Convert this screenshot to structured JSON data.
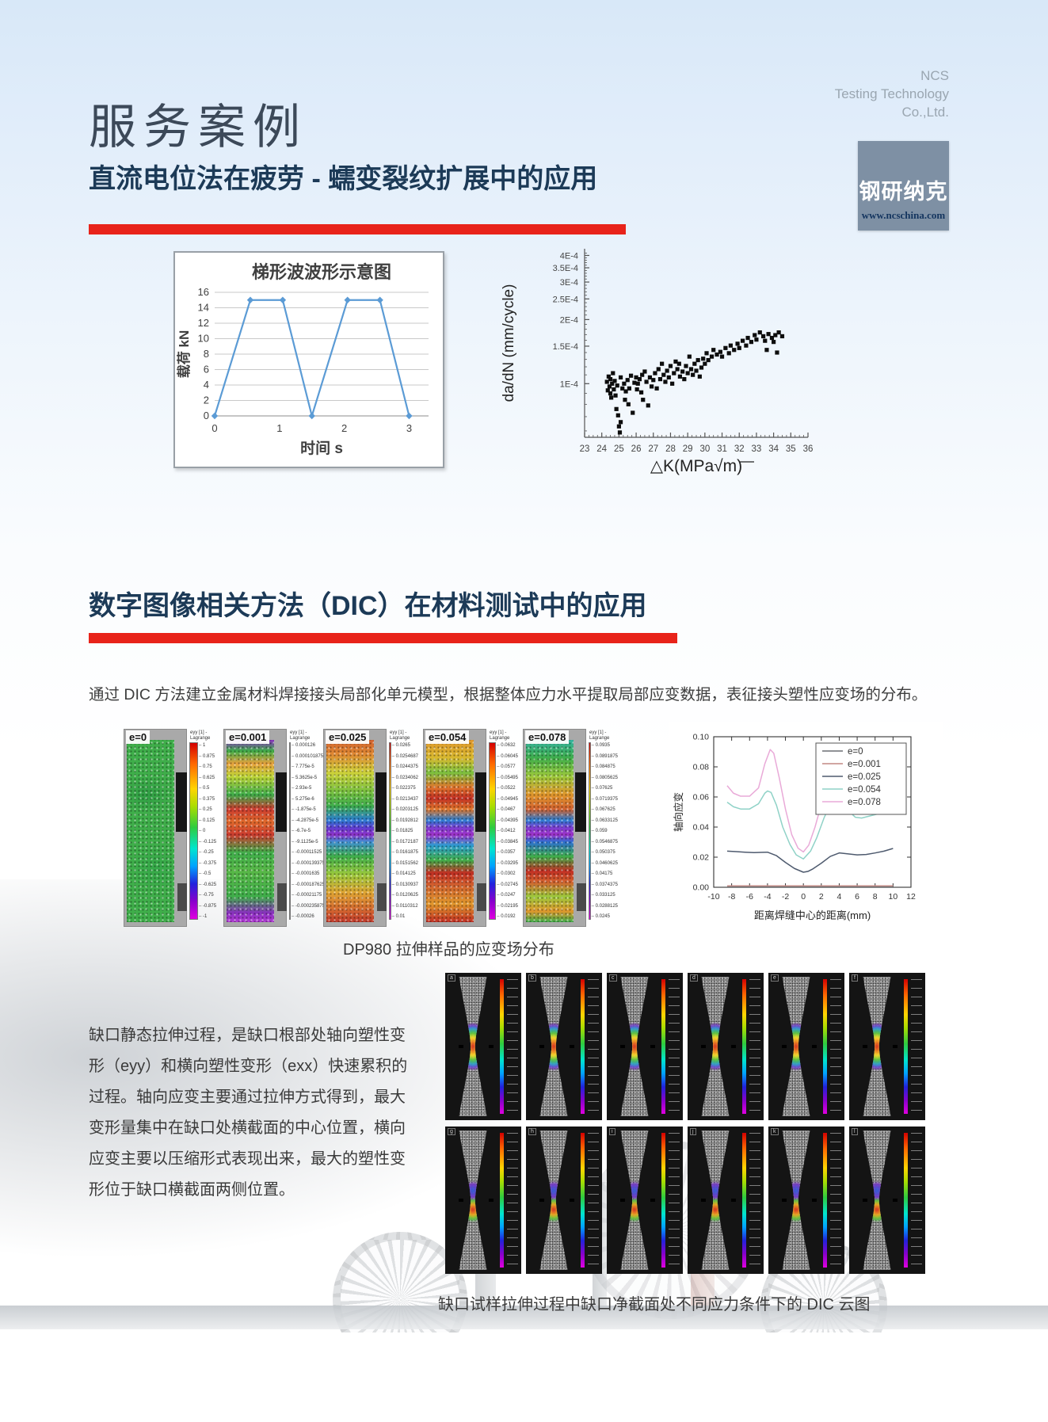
{
  "page": {
    "title": "服务案例",
    "subtitle": "直流电位法在疲劳 - 蠕变裂纹扩展中的应用",
    "section2_title": "数字图像相关方法（DIC）在材料测试中的应用",
    "paragraph1": "通过 DIC 方法建立金属材料焊接接头局部化单元模型，根据整体应力水平提取局部应变数据，表征接头塑性应变场的分布。",
    "paragraph2": "缺口静态拉伸过程，是缺口根部处轴向塑性变形（eyy）和横向塑性变形（exx）快速累积的过程。轴向应变主要通过拉伸方式得到，最大变形量集中在缺口处横截面的中心位置，横向应变主要以压缩形式表现出来，最大的塑性变形位于缺口横截面两侧位置。",
    "caption1": "DP980 拉伸样品的应变场分布",
    "caption2": "缺口试样拉伸过程中缺口净截面处不同应力条件下的 DIC 云图"
  },
  "brand": {
    "name_lines": [
      "NCS",
      "Testing Technology",
      "Co.,Ltd."
    ],
    "logo_text": "钢研纳克",
    "logo_site": "www.ncschina.com",
    "logo_bg": "#7e90a4",
    "accent_red": "#e8231a"
  },
  "chart_data": [
    {
      "type": "line",
      "title": "梯形波波形示意图",
      "xlabel": "时间 s",
      "ylabel": "载荷 kN",
      "x": [
        0,
        0.55,
        1.05,
        1.5,
        2.05,
        2.55,
        3
      ],
      "values": [
        0,
        15,
        15,
        0,
        15,
        15,
        0
      ],
      "xticks": [
        0,
        1,
        2,
        3
      ],
      "yticks": [
        0,
        2,
        4,
        6,
        8,
        10,
        12,
        14,
        16
      ],
      "xlim": [
        0,
        3.3
      ],
      "ylim": [
        0,
        16
      ],
      "grid": true,
      "marker": "diamond",
      "line_color": "#5b9bd5"
    },
    {
      "type": "scatter",
      "xlabel": "△K(MPa√m)",
      "ylabel": "da/dN (mm/cycle)",
      "yscale": "log",
      "xlim": [
        23,
        36
      ],
      "ylim": [
        5.6e-05,
        0.00043
      ],
      "xticks": [
        23,
        24,
        25,
        26,
        27,
        28,
        29,
        30,
        31,
        32,
        33,
        34,
        35,
        36
      ],
      "ytick_labels": [
        "4E-4",
        "3.5E-4",
        "3E-4",
        "2.5E-4",
        "2E-4",
        "1.5E-4",
        "1E-4"
      ],
      "ytick_values": [
        0.0004,
        0.00035,
        0.0003,
        0.00025,
        0.0002,
        0.00015,
        0.0001
      ],
      "marker_color": "#0d0d0d",
      "y_unit": "1e-4 mm/cycle",
      "points": [
        [
          24.3,
          1.02
        ],
        [
          24.35,
          0.93
        ],
        [
          24.4,
          1.08
        ],
        [
          24.45,
          0.97
        ],
        [
          24.5,
          0.9
        ],
        [
          24.5,
          1.05
        ],
        [
          24.55,
          0.86
        ],
        [
          24.6,
          1.0
        ],
        [
          24.65,
          1.12
        ],
        [
          24.7,
          0.94
        ],
        [
          24.75,
          1.03
        ],
        [
          24.8,
          0.88
        ],
        [
          24.85,
          0.76
        ],
        [
          24.9,
          0.98
        ],
        [
          24.95,
          0.71
        ],
        [
          25.0,
          0.63
        ],
        [
          25.05,
          0.59
        ],
        [
          25.1,
          0.66
        ],
        [
          25.1,
          1.07
        ],
        [
          25.2,
          0.95
        ],
        [
          25.3,
          1.0
        ],
        [
          25.35,
          0.84
        ],
        [
          25.4,
          0.92
        ],
        [
          25.5,
          1.04
        ],
        [
          25.55,
          0.8
        ],
        [
          25.6,
          0.95
        ],
        [
          25.7,
          1.09
        ],
        [
          25.8,
          0.73
        ],
        [
          25.9,
          1.01
        ],
        [
          26.0,
          1.07
        ],
        [
          26.05,
          0.94
        ],
        [
          26.1,
          1.0
        ],
        [
          26.2,
          1.05
        ],
        [
          26.3,
          0.91
        ],
        [
          26.35,
          1.1
        ],
        [
          26.4,
          0.84
        ],
        [
          26.5,
          1.14
        ],
        [
          26.6,
          1.02
        ],
        [
          26.7,
          0.79
        ],
        [
          26.8,
          1.07
        ],
        [
          26.9,
          0.97
        ],
        [
          27.0,
          1.04
        ],
        [
          27.1,
          1.12
        ],
        [
          27.2,
          0.95
        ],
        [
          27.3,
          1.17
        ],
        [
          27.4,
          1.05
        ],
        [
          27.5,
          1.24
        ],
        [
          27.6,
          1.1
        ],
        [
          27.7,
          1.02
        ],
        [
          27.8,
          1.15
        ],
        [
          27.9,
          1.07
        ],
        [
          28.0,
          1.21
        ],
        [
          28.1,
          1.0
        ],
        [
          28.2,
          1.12
        ],
        [
          28.3,
          1.27
        ],
        [
          28.4,
          1.17
        ],
        [
          28.5,
          1.24
        ],
        [
          28.55,
          1.08
        ],
        [
          28.7,
          1.14
        ],
        [
          28.8,
          1.05
        ],
        [
          28.9,
          1.21
        ],
        [
          29.0,
          1.12
        ],
        [
          29.1,
          1.34
        ],
        [
          29.2,
          1.17
        ],
        [
          29.3,
          1.1
        ],
        [
          29.4,
          1.24
        ],
        [
          29.5,
          1.15
        ],
        [
          29.6,
          1.29
        ],
        [
          29.7,
          1.08
        ],
        [
          29.8,
          1.19
        ],
        [
          29.9,
          1.31
        ],
        [
          30.0,
          1.24
        ],
        [
          30.1,
          1.39
        ],
        [
          30.2,
          1.29
        ],
        [
          30.4,
          1.34
        ],
        [
          30.5,
          1.44
        ],
        [
          30.7,
          1.37
        ],
        [
          30.9,
          1.41
        ],
        [
          31.0,
          1.34
        ],
        [
          31.2,
          1.47
        ],
        [
          31.4,
          1.39
        ],
        [
          31.5,
          1.51
        ],
        [
          31.7,
          1.44
        ],
        [
          31.9,
          1.54
        ],
        [
          32.0,
          1.47
        ],
        [
          32.2,
          1.59
        ],
        [
          32.4,
          1.51
        ],
        [
          32.5,
          1.64
        ],
        [
          32.7,
          1.57
        ],
        [
          32.9,
          1.69
        ],
        [
          33.0,
          1.61
        ],
        [
          33.2,
          1.74
        ],
        [
          33.4,
          1.67
        ],
        [
          33.5,
          1.59
        ],
        [
          33.7,
          1.71
        ],
        [
          33.9,
          1.64
        ],
        [
          34.0,
          1.57
        ],
        [
          34.1,
          1.69
        ],
        [
          34.3,
          1.74
        ],
        [
          34.5,
          1.67
        ],
        [
          33.6,
          1.44
        ],
        [
          34.2,
          1.4
        ]
      ]
    },
    {
      "type": "line",
      "xlabel": "距离焊缝中心的距离(mm)",
      "ylabel": "轴向应变",
      "xlim": [
        -10,
        12
      ],
      "ylim": [
        0,
        0.1
      ],
      "xticks": [
        -10,
        -8,
        -6,
        -4,
        -2,
        0,
        2,
        4,
        6,
        8,
        10,
        12
      ],
      "yticks": [
        0.0,
        0.02,
        0.04,
        0.06,
        0.08,
        0.1
      ],
      "legend_position": "top-right",
      "series": [
        {
          "name": "e=0",
          "color": "#6b6f73",
          "points": [
            [
              -8.5,
              0.0004
            ],
            [
              10,
              0.0004
            ]
          ]
        },
        {
          "name": "e=0.001",
          "color": "#c28984",
          "points": [
            [
              -8.5,
              0.0009
            ],
            [
              10,
              0.0009
            ]
          ]
        },
        {
          "name": "e=0.025",
          "color": "#4e5a6e",
          "points": [
            [
              -8.5,
              0.024
            ],
            [
              -7.5,
              0.0237
            ],
            [
              -6.5,
              0.0233
            ],
            [
              -5.5,
              0.023
            ],
            [
              -4.5,
              0.0232
            ],
            [
              -4,
              0.0233
            ],
            [
              -3,
              0.021
            ],
            [
              -2,
              0.0165
            ],
            [
              -1,
              0.0125
            ],
            [
              0,
              0.01
            ],
            [
              0.5,
              0.0105
            ],
            [
              1,
              0.012
            ],
            [
              2,
              0.016
            ],
            [
              3,
              0.0205
            ],
            [
              4,
              0.0228
            ],
            [
              5,
              0.0222
            ],
            [
              6,
              0.0215
            ],
            [
              7,
              0.0218
            ],
            [
              8,
              0.0228
            ],
            [
              9,
              0.024
            ],
            [
              10,
              0.0258
            ]
          ]
        },
        {
          "name": "e=0.054",
          "color": "#8fd2c7",
          "points": [
            [
              -8.5,
              0.0565
            ],
            [
              -7.8,
              0.0535
            ],
            [
              -7,
              0.052
            ],
            [
              -6,
              0.052
            ],
            [
              -5,
              0.0555
            ],
            [
              -4.3,
              0.0625
            ],
            [
              -4,
              0.064
            ],
            [
              -3.6,
              0.063
            ],
            [
              -3,
              0.0545
            ],
            [
              -2.3,
              0.04
            ],
            [
              -1.5,
              0.0285
            ],
            [
              -0.8,
              0.0215
            ],
            [
              0,
              0.0188
            ],
            [
              0.8,
              0.024
            ],
            [
              1.5,
              0.033
            ],
            [
              2.3,
              0.046
            ],
            [
              3,
              0.055
            ],
            [
              3.7,
              0.0602
            ],
            [
              4.2,
              0.0585
            ],
            [
              5,
              0.051
            ],
            [
              5.8,
              0.0465
            ],
            [
              6.5,
              0.046
            ],
            [
              7.5,
              0.0475
            ],
            [
              8.5,
              0.049
            ],
            [
              9.3,
              0.051
            ],
            [
              10,
              0.055
            ]
          ]
        },
        {
          "name": "e=0.078",
          "color": "#e9aad8",
          "points": [
            [
              -8.5,
              0.0675
            ],
            [
              -7.8,
              0.0625
            ],
            [
              -7,
              0.0605
            ],
            [
              -6,
              0.0605
            ],
            [
              -5,
              0.066
            ],
            [
              -4.3,
              0.082
            ],
            [
              -3.7,
              0.0915
            ],
            [
              -3.3,
              0.089
            ],
            [
              -2.7,
              0.073
            ],
            [
              -2,
              0.052
            ],
            [
              -1.3,
              0.035
            ],
            [
              -0.6,
              0.026
            ],
            [
              0,
              0.0235
            ],
            [
              0.6,
              0.028
            ],
            [
              1.3,
              0.04
            ],
            [
              2,
              0.055
            ],
            [
              2.8,
              0.07
            ],
            [
              3.5,
              0.081
            ],
            [
              3.8,
              0.0825
            ],
            [
              4.3,
              0.0755
            ],
            [
              5,
              0.063
            ],
            [
              5.8,
              0.0545
            ],
            [
              6.5,
              0.053
            ],
            [
              7.5,
              0.056
            ],
            [
              8.5,
              0.0575
            ],
            [
              9.3,
              0.059
            ],
            [
              10,
              0.063
            ]
          ]
        }
      ]
    }
  ],
  "dic_strip": {
    "colorbar_title": "eyy [1] -\nLagrange",
    "panels": [
      {
        "label": "e=0",
        "ticks": [
          "1",
          "0.875",
          "0.75",
          "0.625",
          "0.5",
          "0.375",
          "0.25",
          "0.125",
          "0",
          "-0.125",
          "-0.25",
          "-0.375",
          "-0.5",
          "-0.625",
          "-0.75",
          "-0.875",
          "-1"
        ]
      },
      {
        "label": "e=0.001",
        "ticks": [
          "0.000126",
          "0.000101875",
          "7.775e-5",
          "5.3625e-5",
          "2.93e-5",
          "5.275e-6",
          "-1.875e-5",
          "-4.2875e-5",
          "-6.7e-5",
          "-9.1125e-5",
          "-0.00011525",
          "-0.000139375",
          "-0.0001635",
          "-0.000187625",
          "-0.00021175",
          "-0.000235875",
          "-0.00026"
        ]
      },
      {
        "label": "e=0.025",
        "ticks": [
          "0.0265",
          "0.0254687",
          "0.0244375",
          "0.0234062",
          "0.022375",
          "0.0213437",
          "0.0203125",
          "0.0192812",
          "0.01825",
          "0.0172187",
          "0.0161875",
          "0.0151562",
          "0.014125",
          "0.0130937",
          "0.0120625",
          "0.0110312",
          "0.01"
        ]
      },
      {
        "label": "e=0.054",
        "ticks": [
          "0.0632",
          "0.06045",
          "0.0577",
          "0.05495",
          "0.0522",
          "0.04945",
          "0.0467",
          "0.04395",
          "0.0412",
          "0.03845",
          "0.0357",
          "0.03295",
          "0.0302",
          "0.02745",
          "0.0247",
          "0.02195",
          "0.0192"
        ]
      },
      {
        "label": "e=0.078",
        "ticks": [
          "0.0935",
          "0.0891875",
          "0.084875",
          "0.0805625",
          "0.07625",
          "0.0719375",
          "0.067625",
          "0.0633125",
          "0.059",
          "0.0546875",
          "0.050375",
          "0.0460625",
          "0.04175",
          "0.0374375",
          "0.033125",
          "0.0288125",
          "0.0245"
        ]
      }
    ]
  },
  "specimen_grid": {
    "labels": [
      "a",
      "b",
      "c",
      "d",
      "e",
      "f",
      "g",
      "h",
      "i",
      "j",
      "k",
      "l"
    ]
  }
}
